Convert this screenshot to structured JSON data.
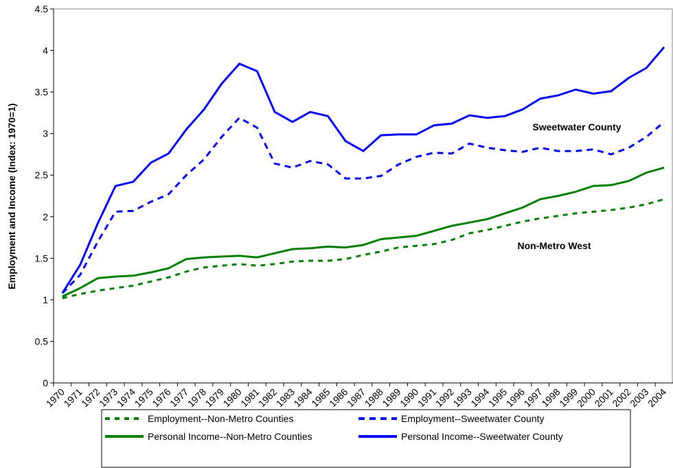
{
  "chart_data": {
    "type": "line",
    "y_label": "Employment and Income (Index: 1970=1)",
    "categories": [
      "1970",
      "1971",
      "1972",
      "1973",
      "1974",
      "1975",
      "1976",
      "1977",
      "1978",
      "1979",
      "1980",
      "1981",
      "1982",
      "1983",
      "1984",
      "1985",
      "1986",
      "1987",
      "1988",
      "1989",
      "1990",
      "1991",
      "1992",
      "1993",
      "1994",
      "1995",
      "1996",
      "1997",
      "1998",
      "1999",
      "2000",
      "2001",
      "2002",
      "2003",
      "2004"
    ],
    "series": [
      {
        "name": "Employment--Non-Metro Counties",
        "color": "#008000",
        "style": "dashed",
        "values": [
          1.02,
          1.07,
          1.11,
          1.14,
          1.17,
          1.22,
          1.27,
          1.34,
          1.39,
          1.41,
          1.43,
          1.41,
          1.43,
          1.46,
          1.47,
          1.47,
          1.49,
          1.54,
          1.58,
          1.63,
          1.65,
          1.67,
          1.72,
          1.8,
          1.84,
          1.89,
          1.94,
          1.98,
          2.01,
          2.04,
          2.06,
          2.08,
          2.11,
          2.15,
          2.21
        ]
      },
      {
        "name": "Employment--Sweetwater County",
        "color": "#0000ff",
        "style": "dashed",
        "values": [
          1.08,
          1.3,
          1.7,
          2.06,
          2.07,
          2.18,
          2.27,
          2.5,
          2.69,
          2.96,
          3.19,
          3.07,
          2.64,
          2.59,
          2.67,
          2.63,
          2.46,
          2.46,
          2.49,
          2.63,
          2.72,
          2.77,
          2.76,
          2.88,
          2.83,
          2.8,
          2.78,
          2.83,
          2.79,
          2.79,
          2.81,
          2.75,
          2.83,
          2.96,
          3.14
        ]
      },
      {
        "name": "Personal Income--Non-Metro Counties",
        "color": "#008000",
        "style": "solid",
        "values": [
          1.04,
          1.14,
          1.26,
          1.28,
          1.29,
          1.33,
          1.38,
          1.49,
          1.51,
          1.52,
          1.53,
          1.51,
          1.56,
          1.61,
          1.62,
          1.64,
          1.63,
          1.66,
          1.73,
          1.75,
          1.77,
          1.83,
          1.89,
          1.93,
          1.97,
          2.04,
          2.11,
          2.21,
          2.25,
          2.3,
          2.37,
          2.38,
          2.43,
          2.53,
          2.59
        ]
      },
      {
        "name": "Personal Income--Sweetwater County",
        "color": "#0000ff",
        "style": "solid",
        "values": [
          1.08,
          1.42,
          1.92,
          2.37,
          2.42,
          2.65,
          2.76,
          3.05,
          3.29,
          3.6,
          3.84,
          3.75,
          3.26,
          3.14,
          3.26,
          3.21,
          2.91,
          2.79,
          2.98,
          2.99,
          2.99,
          3.1,
          3.12,
          3.22,
          3.19,
          3.21,
          3.29,
          3.42,
          3.46,
          3.53,
          3.48,
          3.51,
          3.67,
          3.79,
          4.04
        ]
      }
    ],
    "annotations": [
      {
        "text": "Sweetwater County",
        "color": "#0000ff"
      },
      {
        "text": "Non-Metro West",
        "color": "#008000"
      }
    ],
    "ylim": [
      0,
      4.5
    ],
    "yticks": [
      0,
      0.5,
      1,
      1.5,
      2,
      2.5,
      3,
      3.5,
      4,
      4.5
    ]
  }
}
